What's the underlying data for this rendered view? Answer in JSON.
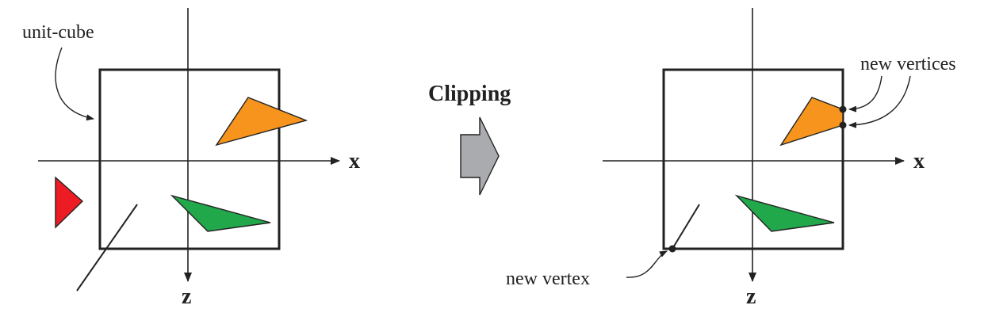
{
  "left": {
    "unit_cube_label": "unit-cube",
    "x_axis_label": "x",
    "z_axis_label": "z"
  },
  "middle": {
    "operation_label": "Clipping"
  },
  "right": {
    "new_vertices_label": "new vertices",
    "new_vertex_label": "new vertex",
    "x_axis_label": "x",
    "z_axis_label": "z"
  },
  "colors": {
    "orange": "#F7941D",
    "green": "#21A84A",
    "red": "#ED1C24",
    "arrow_gray": "#A9ABAE",
    "line": "#222222"
  }
}
